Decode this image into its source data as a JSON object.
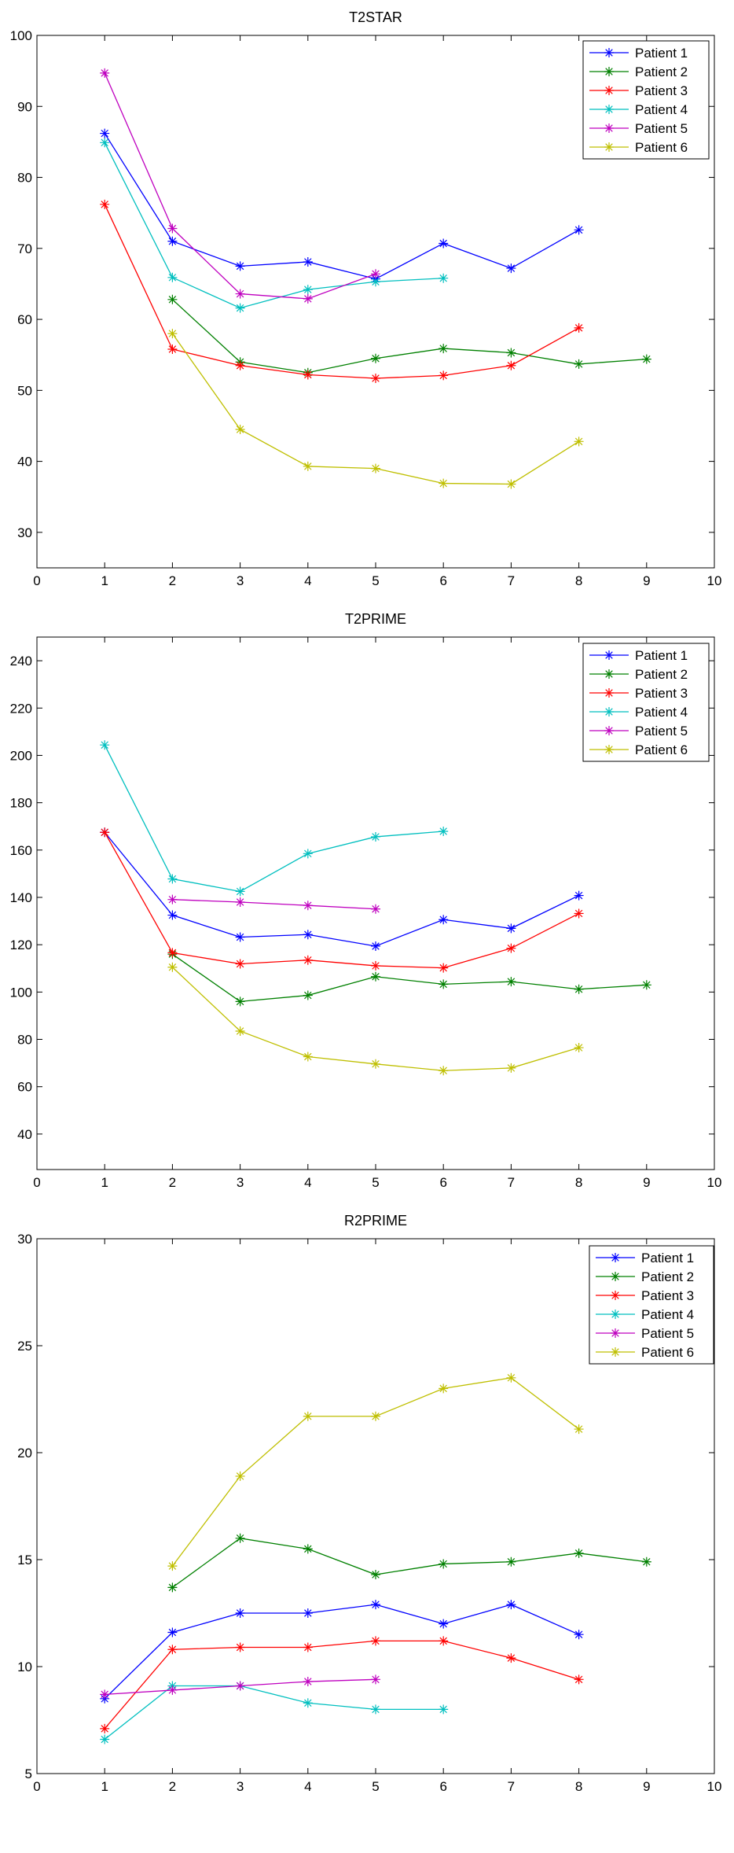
{
  "chart_data": [
    {
      "type": "line",
      "title": "T2STAR",
      "xlim": [
        0,
        10
      ],
      "ylim": [
        25,
        100
      ],
      "xticks": [
        0,
        1,
        2,
        3,
        4,
        5,
        6,
        7,
        8,
        9,
        10
      ],
      "yticks": [
        30,
        40,
        50,
        60,
        70,
        80,
        90,
        100
      ],
      "grid": false,
      "legend_position": "top-right",
      "series": [
        {
          "name": "Patient 1",
          "color": "#0000ff",
          "x": [
            1,
            2,
            3,
            4,
            5,
            6,
            7,
            8
          ],
          "y": [
            86.2,
            71.0,
            67.5,
            68.1,
            65.7,
            70.7,
            67.2,
            72.6
          ]
        },
        {
          "name": "Patient 2",
          "color": "#008000",
          "x": [
            2,
            3,
            4,
            5,
            6,
            7,
            8,
            9
          ],
          "y": [
            62.8,
            54.0,
            52.5,
            54.5,
            55.9,
            55.3,
            53.7,
            54.4
          ]
        },
        {
          "name": "Patient 3",
          "color": "#ff0000",
          "x": [
            1,
            2,
            3,
            4,
            5,
            6,
            7,
            8
          ],
          "y": [
            76.2,
            55.8,
            53.5,
            52.2,
            51.7,
            52.1,
            53.5,
            58.8
          ]
        },
        {
          "name": "Patient 4",
          "color": "#00bfbf",
          "x": [
            1,
            2,
            3,
            4,
            5,
            6
          ],
          "y": [
            84.9,
            65.9,
            61.6,
            64.2,
            65.3,
            65.8
          ]
        },
        {
          "name": "Patient 5",
          "color": "#bf00bf",
          "x": [
            1,
            2,
            3,
            4,
            5
          ],
          "y": [
            94.7,
            72.8,
            63.6,
            62.9,
            66.4
          ]
        },
        {
          "name": "Patient 6",
          "color": "#bfbf00",
          "x": [
            2,
            3,
            4,
            5,
            6,
            7,
            8
          ],
          "y": [
            58.0,
            44.5,
            39.3,
            39.0,
            36.9,
            36.8,
            42.8
          ]
        }
      ]
    },
    {
      "type": "line",
      "title": "T2PRIME",
      "xlim": [
        0,
        10
      ],
      "ylim": [
        25,
        250
      ],
      "xticks": [
        0,
        1,
        2,
        3,
        4,
        5,
        6,
        7,
        8,
        9,
        10
      ],
      "yticks": [
        40,
        60,
        80,
        100,
        120,
        140,
        160,
        180,
        200,
        220,
        240
      ],
      "grid": false,
      "legend_position": "top-right",
      "series": [
        {
          "name": "Patient 1",
          "color": "#0000ff",
          "x": [
            1,
            2,
            3,
            4,
            5,
            6,
            7,
            8
          ],
          "y": [
            167.5,
            132.5,
            123.2,
            124.3,
            119.4,
            130.6,
            126.9,
            140.8
          ]
        },
        {
          "name": "Patient 2",
          "color": "#008000",
          "x": [
            2,
            3,
            4,
            5,
            6,
            7,
            8,
            9
          ],
          "y": [
            116.0,
            96.0,
            98.6,
            106.5,
            103.3,
            104.4,
            101.2,
            103.0
          ]
        },
        {
          "name": "Patient 3",
          "color": "#ff0000",
          "x": [
            1,
            2,
            3,
            4,
            5,
            6,
            7,
            8
          ],
          "y": [
            167.5,
            116.6,
            111.9,
            113.5,
            111.1,
            110.2,
            118.5,
            133.2
          ]
        },
        {
          "name": "Patient 4",
          "color": "#00bfbf",
          "x": [
            1,
            2,
            3,
            4,
            5,
            6
          ],
          "y": [
            204.4,
            147.8,
            142.5,
            158.5,
            165.6,
            167.9
          ]
        },
        {
          "name": "Patient 5",
          "color": "#bf00bf",
          "x": [
            2,
            3,
            4,
            5
          ],
          "y": [
            139.1,
            138.0,
            136.6,
            135.1
          ]
        },
        {
          "name": "Patient 6",
          "color": "#bfbf00",
          "x": [
            2,
            3,
            4,
            5,
            6,
            7,
            8
          ],
          "y": [
            110.5,
            83.5,
            72.7,
            69.6,
            66.8,
            67.9,
            76.5
          ]
        }
      ]
    },
    {
      "type": "line",
      "title": "R2PRIME",
      "xlim": [
        0,
        10
      ],
      "ylim": [
        5,
        30
      ],
      "xticks": [
        0,
        1,
        2,
        3,
        4,
        5,
        6,
        7,
        8,
        9,
        10
      ],
      "yticks": [
        5,
        10,
        15,
        20,
        25,
        30
      ],
      "grid": false,
      "legend_position": "top-right",
      "series": [
        {
          "name": "Patient 1",
          "color": "#0000ff",
          "x": [
            1,
            2,
            3,
            4,
            5,
            6,
            7,
            8
          ],
          "y": [
            8.5,
            11.6,
            12.5,
            12.5,
            12.9,
            12.0,
            12.9,
            11.5
          ]
        },
        {
          "name": "Patient 2",
          "color": "#008000",
          "x": [
            2,
            3,
            4,
            5,
            6,
            7,
            8,
            9
          ],
          "y": [
            13.7,
            16.0,
            15.5,
            14.3,
            14.8,
            14.9,
            15.3,
            14.9
          ]
        },
        {
          "name": "Patient 3",
          "color": "#ff0000",
          "x": [
            1,
            2,
            3,
            4,
            5,
            6,
            7,
            8
          ],
          "y": [
            7.1,
            10.8,
            10.9,
            10.9,
            11.2,
            11.2,
            10.4,
            9.4
          ]
        },
        {
          "name": "Patient 4",
          "color": "#00bfbf",
          "x": [
            1,
            2,
            3,
            4,
            5,
            6
          ],
          "y": [
            6.6,
            9.1,
            9.1,
            8.3,
            8.0,
            8.0
          ]
        },
        {
          "name": "Patient 5",
          "color": "#bf00bf",
          "x": [
            1,
            2,
            3,
            4,
            5
          ],
          "y": [
            8.7,
            8.9,
            9.1,
            9.3,
            9.4
          ]
        },
        {
          "name": "Patient 6",
          "color": "#bfbf00",
          "x": [
            2,
            3,
            4,
            5,
            6,
            7,
            8
          ],
          "y": [
            14.7,
            18.9,
            21.7,
            21.7,
            23.0,
            23.5,
            21.1
          ]
        }
      ]
    }
  ]
}
